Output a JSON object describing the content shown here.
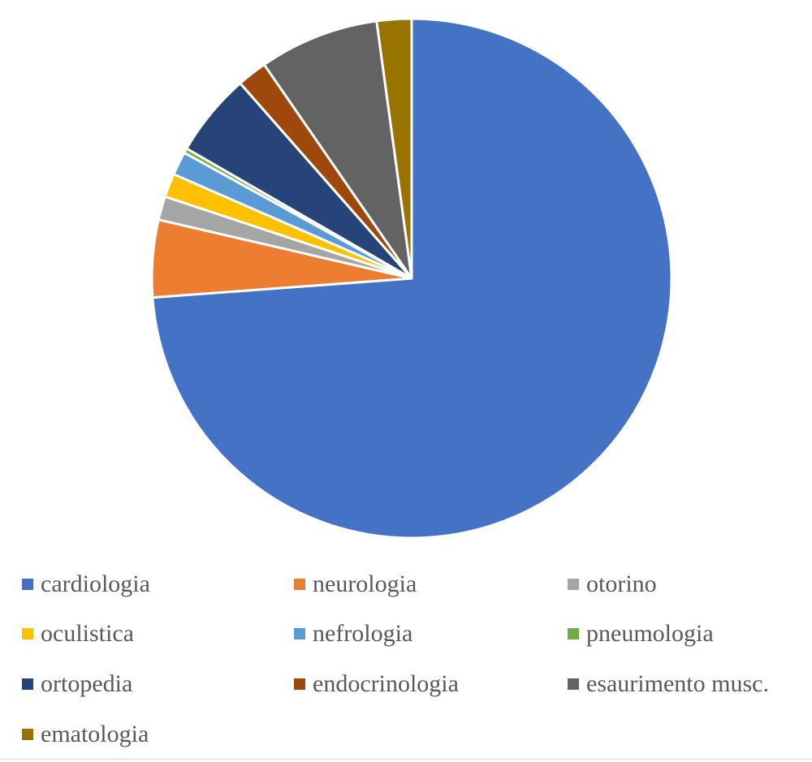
{
  "chart_data": {
    "type": "pie",
    "title": "",
    "categories": [
      "cardiologia",
      "neurologia",
      "otorino",
      "oculistica",
      "nefrologia",
      "pneumologia",
      "ortopedia",
      "endocrinologia",
      "esaurimento musc.",
      "ematologia"
    ],
    "values": [
      75.3,
      4.9,
      1.5,
      1.5,
      1.5,
      0.3,
      5.3,
      1.9,
      7.6,
      2.2
    ],
    "colors": [
      "#4472C4",
      "#ED7D31",
      "#A5A5A5",
      "#FFC000",
      "#5B9BD5",
      "#70AD47",
      "#264478",
      "#9E480E",
      "#636363",
      "#997300"
    ],
    "start_angle": "12 o'clock",
    "direction": "clockwise",
    "legend_position": "bottom"
  },
  "legend": {
    "items": [
      {
        "label": "cardiologia",
        "color": "#4472C4"
      },
      {
        "label": "neurologia",
        "color": "#ED7D31"
      },
      {
        "label": "otorino",
        "color": "#A5A5A5"
      },
      {
        "label": "oculistica",
        "color": "#FFC000"
      },
      {
        "label": "nefrologia",
        "color": "#5B9BD5"
      },
      {
        "label": "pneumologia",
        "color": "#70AD47"
      },
      {
        "label": "ortopedia",
        "color": "#264478"
      },
      {
        "label": "endocrinologia",
        "color": "#9E480E"
      },
      {
        "label": "esaurimento musc.",
        "color": "#636363"
      },
      {
        "label": "ematologia",
        "color": "#997300"
      }
    ]
  }
}
